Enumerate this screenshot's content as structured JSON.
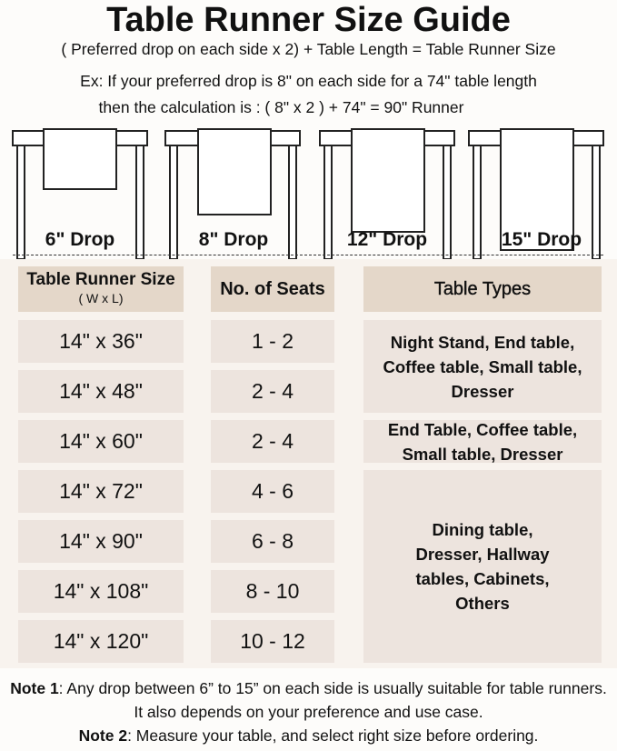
{
  "title": "Table Runner Size Guide",
  "formula": "( Preferred drop on each side x 2) + Table Length = Table Runner Size",
  "example_line1": "Ex: If your preferred drop is 8\" on each side for a 74\" table length",
  "example_line2": "then the calculation is : ( 8\" x 2 ) + 74\" = 90\" Runner",
  "drops": [
    "6\" Drop",
    "8\" Drop",
    "12\" Drop",
    "15\" Drop"
  ],
  "table": {
    "headers": {
      "size": "Table Runner Size",
      "size_sub": "( W x L)",
      "seats": "No. of Seats",
      "types": "Table Types"
    },
    "rows": [
      {
        "size": "14\" x 36\"",
        "seats": "1 - 2"
      },
      {
        "size": "14\" x 48\"",
        "seats": "2 - 4"
      },
      {
        "size": "14\" x 60\"",
        "seats": "2 - 4"
      },
      {
        "size": "14\" x 72\"",
        "seats": "4 - 6"
      },
      {
        "size": "14\" x 90\"",
        "seats": "6 - 8"
      },
      {
        "size": "14\" x 108\"",
        "seats": "8 - 10"
      },
      {
        "size": "14\" x 120\"",
        "seats": "10 - 12"
      }
    ],
    "type_groups": [
      "Night Stand, End table, Coffee table, Small table, Dresser",
      "End Table, Coffee table, Small table, Dresser",
      "Dining table, Dresser, Hallway tables, Cabinets, Others"
    ]
  },
  "notes": [
    {
      "label": "Note 1",
      "text": ": Any drop between 6” to 15” on each side is usually suitable for table runners. It also depends on your preference and use case."
    },
    {
      "label": "Note 2",
      "text": ": Measure your table, and select right size before ordering."
    }
  ],
  "colors": {
    "header_cell": "#e4d7c9",
    "body_cell": "#ede4de",
    "panel": "#f8f3ee"
  }
}
